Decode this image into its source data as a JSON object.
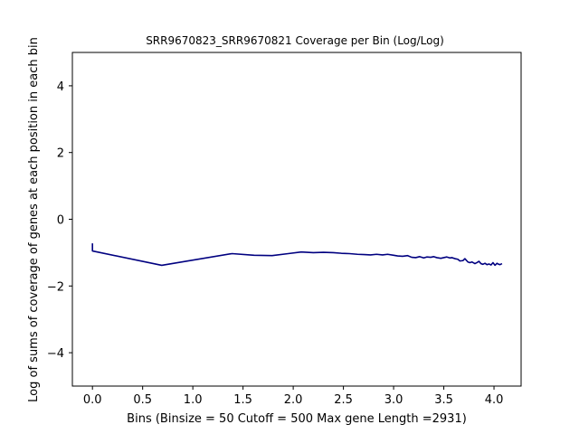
{
  "chart_data": {
    "type": "line",
    "title": "SRR9670823_SRR9670821 Coverage per Bin (Log/Log)",
    "xlabel": "Bins  (Binsize = 50 Cutoff = 500 Max gene Length =2931)",
    "ylabel": "Log of sums of coverage of genes at each position in each bin",
    "xlim": [
      -0.2,
      4.27
    ],
    "ylim": [
      -5,
      5
    ],
    "xticks": [
      {
        "value": 0.0,
        "label": "0.0"
      },
      {
        "value": 0.5,
        "label": "0.5"
      },
      {
        "value": 1.0,
        "label": "1.0"
      },
      {
        "value": 1.5,
        "label": "1.5"
      },
      {
        "value": 2.0,
        "label": "2.0"
      },
      {
        "value": 2.5,
        "label": "2.5"
      },
      {
        "value": 3.0,
        "label": "3.0"
      },
      {
        "value": 3.5,
        "label": "3.5"
      },
      {
        "value": 4.0,
        "label": "4.0"
      }
    ],
    "yticks": [
      {
        "value": -4,
        "label": "−4"
      },
      {
        "value": -2,
        "label": "−2"
      },
      {
        "value": 0,
        "label": "0"
      },
      {
        "value": 2,
        "label": "2"
      },
      {
        "value": 4,
        "label": "4"
      }
    ],
    "grid": false,
    "series": [
      {
        "color": "#000080",
        "points": [
          [
            0.0,
            -0.72
          ],
          [
            0.0,
            -0.95
          ],
          [
            0.69,
            -1.38
          ],
          [
            1.39,
            -1.03
          ],
          [
            1.61,
            -1.08
          ],
          [
            1.79,
            -1.09
          ],
          [
            1.95,
            -1.03
          ],
          [
            2.08,
            -0.98
          ],
          [
            2.2,
            -1.0
          ],
          [
            2.3,
            -0.99
          ],
          [
            2.4,
            -1.0
          ],
          [
            2.48,
            -1.02
          ],
          [
            2.56,
            -1.03
          ],
          [
            2.64,
            -1.05
          ],
          [
            2.71,
            -1.06
          ],
          [
            2.77,
            -1.07
          ],
          [
            2.83,
            -1.05
          ],
          [
            2.89,
            -1.07
          ],
          [
            2.94,
            -1.05
          ],
          [
            3.0,
            -1.08
          ],
          [
            3.04,
            -1.1
          ],
          [
            3.09,
            -1.11
          ],
          [
            3.14,
            -1.09
          ],
          [
            3.18,
            -1.14
          ],
          [
            3.22,
            -1.15
          ],
          [
            3.26,
            -1.12
          ],
          [
            3.3,
            -1.16
          ],
          [
            3.33,
            -1.13
          ],
          [
            3.37,
            -1.14
          ],
          [
            3.4,
            -1.12
          ],
          [
            3.43,
            -1.15
          ],
          [
            3.47,
            -1.17
          ],
          [
            3.5,
            -1.15
          ],
          [
            3.53,
            -1.13
          ],
          [
            3.56,
            -1.16
          ],
          [
            3.58,
            -1.15
          ],
          [
            3.61,
            -1.18
          ],
          [
            3.64,
            -1.2
          ],
          [
            3.66,
            -1.25
          ],
          [
            3.69,
            -1.24
          ],
          [
            3.71,
            -1.18
          ],
          [
            3.74,
            -1.28
          ],
          [
            3.76,
            -1.3
          ],
          [
            3.78,
            -1.28
          ],
          [
            3.81,
            -1.33
          ],
          [
            3.83,
            -1.3
          ],
          [
            3.85,
            -1.26
          ],
          [
            3.87,
            -1.33
          ],
          [
            3.89,
            -1.35
          ],
          [
            3.91,
            -1.32
          ],
          [
            3.93,
            -1.36
          ],
          [
            3.95,
            -1.34
          ],
          [
            3.97,
            -1.37
          ],
          [
            3.99,
            -1.3
          ],
          [
            4.01,
            -1.38
          ],
          [
            4.03,
            -1.32
          ],
          [
            4.04,
            -1.34
          ],
          [
            4.06,
            -1.36
          ],
          [
            4.08,
            -1.33
          ]
        ]
      }
    ]
  }
}
